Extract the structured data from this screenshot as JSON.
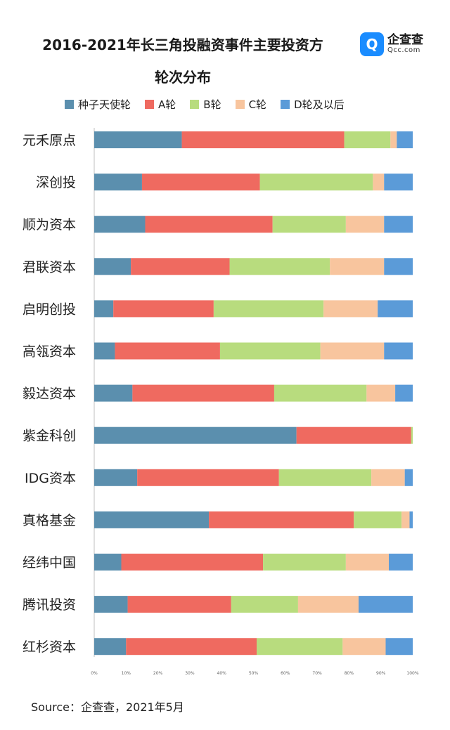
{
  "title_line1": "2016-2021年长三角投融资事件主要投资方",
  "title_line2": "轮次分布",
  "logo": {
    "name": "企查查",
    "url": "Qcc.com"
  },
  "source": "Source：企查查，2021年5月",
  "chart_data": {
    "type": "bar",
    "orientation": "horizontal",
    "stacked": "percent",
    "categories": [
      "元禾原点",
      "深创投",
      "顺为资本",
      "君联资本",
      "启明创投",
      "高瓴资本",
      "毅达资本",
      "紫金科创",
      "IDG资本",
      "真格基金",
      "经纬中国",
      "腾讯投资",
      "红杉资本"
    ],
    "series": [
      {
        "name": "种子天使轮",
        "color": "#5b8fae",
        "values": [
          27.5,
          15,
          16,
          11.5,
          6,
          6.5,
          12,
          63.5,
          13.5,
          36,
          8.5,
          10.5,
          10
        ]
      },
      {
        "name": "A轮",
        "color": "#ef6a60",
        "values": [
          51,
          37,
          40,
          31,
          31.5,
          33,
          44.5,
          36,
          44.5,
          45.5,
          44.5,
          32.5,
          41
        ]
      },
      {
        "name": "B轮",
        "color": "#b8dc7e",
        "values": [
          14.5,
          35.5,
          23,
          31.5,
          34.5,
          31.5,
          29,
          0.5,
          29,
          15,
          26,
          21,
          27
        ]
      },
      {
        "name": "C轮",
        "color": "#f8c59e",
        "values": [
          2,
          3.5,
          12,
          17,
          17,
          20,
          9,
          0,
          10.5,
          2.5,
          13.5,
          19,
          13.5
        ]
      },
      {
        "name": "D轮及以后",
        "color": "#5b9bd8",
        "values": [
          5,
          9,
          9,
          9,
          11,
          9,
          5.5,
          0,
          2.5,
          1,
          7.5,
          17,
          8.5
        ]
      }
    ],
    "xlim": [
      0,
      100
    ],
    "x_ticks": [
      "0%",
      "10%",
      "20%",
      "30%",
      "40%",
      "50%",
      "60%",
      "70%",
      "80%",
      "90%",
      "100%"
    ],
    "legend_position": "top",
    "grid": false
  }
}
